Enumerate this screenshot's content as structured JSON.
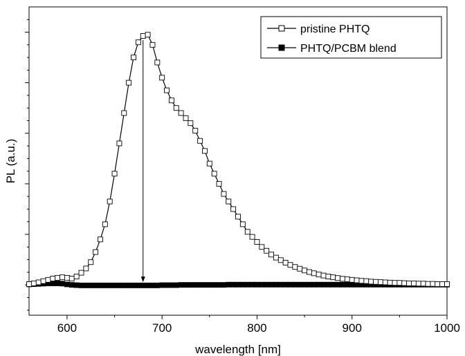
{
  "chart_data": {
    "type": "scatter",
    "xlabel": "wavelength [nm]",
    "ylabel": "PL (a.u.)",
    "xlim": [
      560,
      1000
    ],
    "ylim": [
      -0.12,
      1.1
    ],
    "x_ticks": [
      600,
      700,
      800,
      900,
      1000
    ],
    "x_tick_labels": [
      "600",
      "700",
      "800",
      "900",
      "1000"
    ],
    "grid": false,
    "legend_position": "top-right",
    "annotation": "downward arrow at 680 nm from the pristine peak to the blend baseline",
    "series": [
      {
        "name": "pristine PHTQ",
        "marker": "open-square",
        "line": true,
        "color": "#000000",
        "x": [
          560,
          565,
          570,
          575,
          580,
          585,
          590,
          595,
          600,
          605,
          610,
          615,
          620,
          625,
          630,
          635,
          640,
          645,
          650,
          655,
          660,
          665,
          670,
          675,
          680,
          685,
          690,
          695,
          700,
          705,
          710,
          715,
          720,
          725,
          730,
          735,
          740,
          745,
          750,
          755,
          760,
          765,
          770,
          775,
          780,
          785,
          790,
          795,
          800,
          805,
          810,
          815,
          820,
          825,
          830,
          835,
          840,
          845,
          850,
          855,
          860,
          865,
          870,
          875,
          880,
          885,
          890,
          895,
          900,
          905,
          910,
          915,
          920,
          925,
          930,
          935,
          940,
          945,
          950,
          955,
          960,
          965,
          970,
          975,
          980,
          985,
          990,
          995,
          1000
        ],
        "y": [
          0.003,
          0.006,
          0.01,
          0.015,
          0.02,
          0.025,
          0.028,
          0.03,
          0.028,
          0.025,
          0.033,
          0.048,
          0.065,
          0.09,
          0.13,
          0.18,
          0.24,
          0.33,
          0.44,
          0.56,
          0.68,
          0.8,
          0.9,
          0.96,
          0.985,
          0.99,
          0.95,
          0.88,
          0.82,
          0.77,
          0.73,
          0.7,
          0.68,
          0.66,
          0.64,
          0.61,
          0.57,
          0.53,
          0.48,
          0.44,
          0.4,
          0.36,
          0.33,
          0.3,
          0.27,
          0.24,
          0.21,
          0.19,
          0.17,
          0.15,
          0.135,
          0.12,
          0.108,
          0.098,
          0.088,
          0.079,
          0.071,
          0.064,
          0.057,
          0.051,
          0.046,
          0.041,
          0.037,
          0.033,
          0.03,
          0.027,
          0.024,
          0.022,
          0.02,
          0.018,
          0.016,
          0.015,
          0.013,
          0.012,
          0.011,
          0.01,
          0.009,
          0.008,
          0.008,
          0.007,
          0.006,
          0.006,
          0.005,
          0.005,
          0.004,
          0.004,
          0.003,
          0.003,
          0.003
        ]
      },
      {
        "name": "PHTQ/PCBM blend",
        "marker": "filled-square",
        "line": true,
        "color": "#000000",
        "x": [
          560,
          565,
          570,
          575,
          580,
          585,
          590,
          595,
          600,
          605,
          610,
          615,
          620,
          625,
          630,
          635,
          640,
          645,
          650,
          655,
          660,
          665,
          670,
          675,
          680,
          685,
          690,
          695,
          700,
          705,
          710,
          715,
          720,
          725,
          730,
          735,
          740,
          745,
          750,
          755,
          760,
          765,
          770,
          775,
          780,
          785,
          790,
          795,
          800,
          805,
          810,
          815,
          820,
          825,
          830,
          835,
          840,
          845,
          850,
          855,
          860,
          865,
          870,
          875,
          880,
          885,
          890,
          895,
          900,
          905,
          910,
          915,
          920,
          925,
          930,
          935,
          940,
          945,
          950,
          955,
          960,
          965,
          970,
          975,
          980,
          985,
          990,
          995,
          1000
        ],
        "y": [
          0.002,
          0.003,
          0.004,
          0.005,
          0.006,
          0.006,
          0.006,
          0.005,
          0.002,
          0.0,
          -0.001,
          -0.002,
          -0.002,
          -0.002,
          -0.002,
          -0.002,
          -0.002,
          -0.002,
          -0.002,
          -0.002,
          -0.002,
          -0.002,
          -0.002,
          -0.002,
          -0.002,
          -0.002,
          -0.002,
          -0.002,
          -0.001,
          -0.001,
          -0.001,
          -0.001,
          0.0,
          0.0,
          0.0,
          0.0,
          0.0,
          0.0,
          0.0,
          0.0,
          0.0,
          0.0,
          0.001,
          0.001,
          0.001,
          0.001,
          0.001,
          0.001,
          0.001,
          0.001,
          0.001,
          0.001,
          0.001,
          0.001,
          0.001,
          0.001,
          0.001,
          0.001,
          0.001,
          0.001,
          0.001,
          0.001,
          0.001,
          0.001,
          0.001,
          0.001,
          0.001,
          0.001,
          0.001,
          0.001,
          0.001,
          0.001,
          0.001,
          0.001,
          0.001,
          0.001,
          0.001,
          0.001,
          0.001,
          0.001,
          0.001,
          0.001,
          0.001,
          0.001,
          0.001,
          0.001,
          0.001,
          0.001,
          0.001
        ]
      }
    ]
  }
}
